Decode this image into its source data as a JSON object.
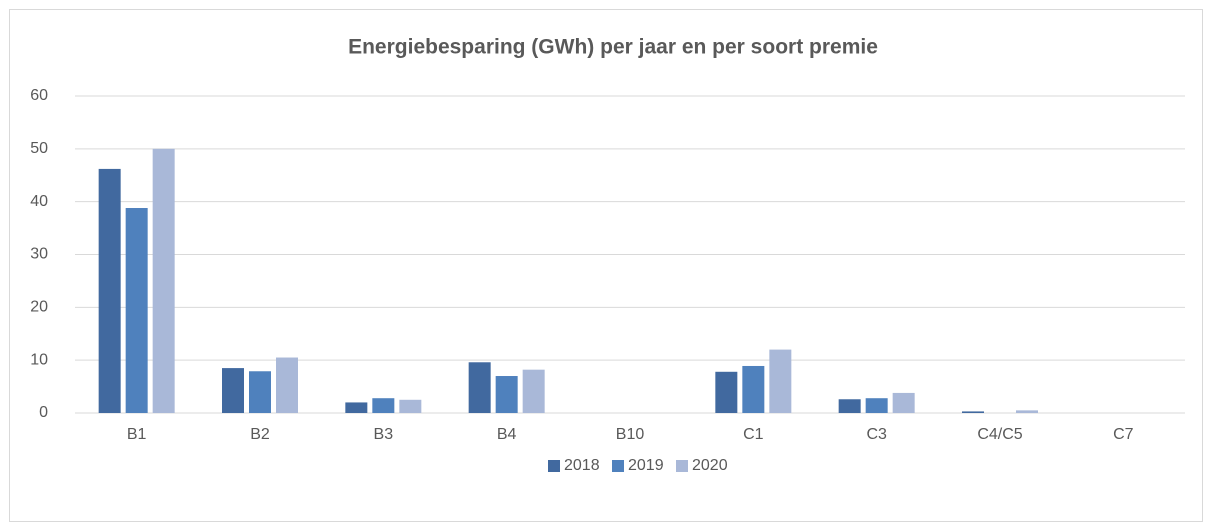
{
  "chart_data": {
    "type": "bar",
    "title": "Energiebesparing (GWh) per jaar en per soort premie",
    "categories": [
      "B1",
      "B2",
      "B3",
      "B4",
      "B10",
      "C1",
      "C3",
      "C4/C5",
      "C7"
    ],
    "series": [
      {
        "name": "2018",
        "color": "#41699f",
        "values": [
          46.2,
          8.5,
          2.0,
          9.6,
          0,
          7.8,
          2.6,
          0.3,
          0
        ]
      },
      {
        "name": "2019",
        "color": "#4f81bd",
        "values": [
          38.8,
          7.9,
          2.8,
          7.0,
          0,
          8.9,
          2.8,
          0,
          0
        ]
      },
      {
        "name": "2020",
        "color": "#a9b8d8",
        "values": [
          50,
          10.5,
          2.5,
          8.2,
          0,
          12,
          3.8,
          0.5,
          0
        ]
      }
    ],
    "ylim": [
      0,
      60
    ],
    "yticks": [
      0,
      10,
      20,
      30,
      40,
      50,
      60
    ],
    "grid": true,
    "legend": "bottom"
  }
}
